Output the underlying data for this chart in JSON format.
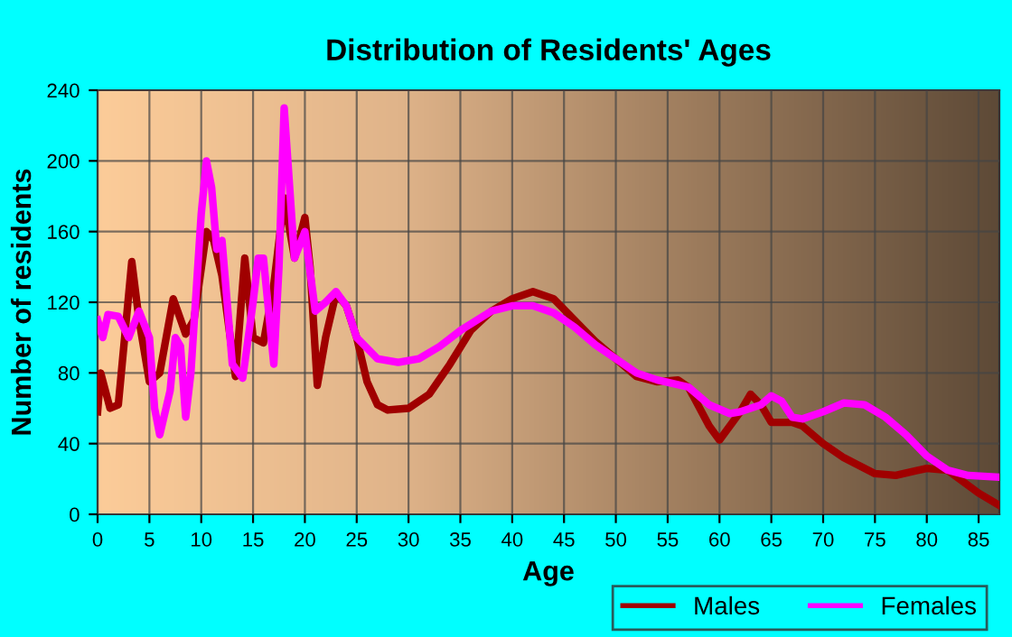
{
  "chart_data": {
    "type": "line",
    "title": "Distribution of Residents' Ages",
    "xlabel": "Age",
    "ylabel": "Number of residents",
    "xlim": [
      0,
      87
    ],
    "xticks": [
      0,
      5,
      10,
      15,
      20,
      25,
      30,
      35,
      40,
      45,
      50,
      55,
      60,
      65,
      70,
      75,
      80,
      85
    ],
    "ylim": [
      0,
      240
    ],
    "yticks": [
      0,
      40,
      80,
      120,
      160,
      200,
      240
    ],
    "grid": true,
    "legend": "bottom right",
    "series": [
      {
        "name": "Males",
        "color": "#a00000",
        "x": [
          0,
          0.3,
          1.2,
          2,
          3.3,
          4,
          5,
          6,
          7.3,
          8.5,
          9.3,
          10.5,
          11.2,
          12,
          13.3,
          14.2,
          15,
          16,
          17,
          18,
          19,
          20,
          20.5,
          21.2,
          22,
          23,
          24,
          25,
          26,
          27,
          28,
          30,
          32,
          34,
          36,
          38,
          40,
          42,
          44,
          46,
          48,
          50,
          52,
          54,
          56,
          57,
          59,
          60,
          62,
          63,
          64,
          65,
          67,
          68,
          70,
          72,
          75,
          77,
          80,
          82,
          85,
          87
        ],
        "values": [
          58,
          80,
          60,
          62,
          143,
          110,
          75,
          80,
          122,
          102,
          110,
          160,
          155,
          135,
          78,
          145,
          100,
          97,
          130,
          179,
          145,
          168,
          140,
          73,
          100,
          125,
          118,
          100,
          75,
          62,
          59,
          60,
          68,
          85,
          104,
          115,
          122,
          126,
          122,
          110,
          98,
          88,
          78,
          75,
          76,
          72,
          50,
          42,
          58,
          68,
          62,
          52,
          52,
          50,
          40,
          32,
          23,
          22,
          26,
          25,
          12,
          5
        ]
      },
      {
        "name": "Females",
        "color": "#ff00ff",
        "x": [
          0,
          0.5,
          1,
          2,
          3,
          4,
          5,
          5.5,
          6,
          7,
          7.5,
          8,
          8.5,
          9,
          10,
          10.5,
          11,
          11.5,
          12,
          12.5,
          13,
          14,
          15,
          15.5,
          16,
          17,
          17.5,
          18,
          19,
          20,
          21,
          22,
          23,
          24,
          25,
          27,
          29,
          31,
          33,
          35,
          38,
          40,
          42,
          44,
          46,
          48,
          50,
          52,
          54,
          57,
          59,
          61,
          62,
          64,
          65,
          66,
          67,
          68,
          70,
          72,
          74,
          76,
          78,
          80,
          82,
          84,
          87
        ],
        "values": [
          110,
          100,
          113,
          112,
          100,
          115,
          100,
          60,
          45,
          70,
          100,
          95,
          55,
          80,
          170,
          200,
          185,
          150,
          155,
          120,
          85,
          77,
          120,
          145,
          145,
          85,
          140,
          230,
          145,
          160,
          115,
          120,
          126,
          118,
          100,
          88,
          86,
          88,
          95,
          104,
          115,
          118,
          118,
          114,
          106,
          96,
          88,
          80,
          76,
          72,
          62,
          57,
          58,
          62,
          67,
          64,
          55,
          54,
          58,
          63,
          62,
          55,
          45,
          33,
          25,
          22,
          21
        ]
      }
    ]
  }
}
